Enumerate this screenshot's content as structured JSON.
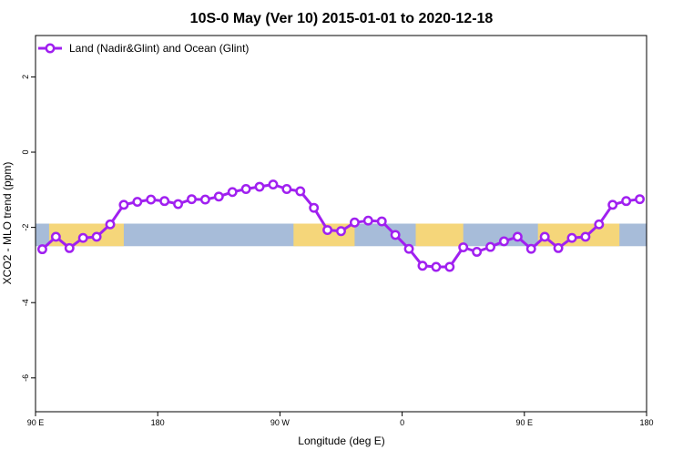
{
  "colors": {
    "series": "#a020f0",
    "ocean_band": "#a7bcd9",
    "land_band": "#f5d67a",
    "axis": "#000000"
  },
  "chart_data": {
    "type": "line",
    "title": "10S-0 May (Ver 10)   2015-01-01 to 2020-12-18",
    "xlabel": "Longitude (deg E)",
    "ylabel": "XCO2 - MLO trend (ppm)",
    "xlim": [
      0,
      450
    ],
    "ylim": [
      -6.9,
      3.1
    ],
    "x_ticks": [
      {
        "value": 0,
        "label": "90 E"
      },
      {
        "value": 90,
        "label": "180"
      },
      {
        "value": 180,
        "label": "90 W"
      },
      {
        "value": 270,
        "label": "0"
      },
      {
        "value": 360,
        "label": "90 E"
      },
      {
        "value": 450,
        "label": "180"
      }
    ],
    "y_ticks": [
      {
        "value": 2,
        "label": "2"
      },
      {
        "value": 0,
        "label": "0"
      },
      {
        "value": -2,
        "label": "-2"
      },
      {
        "value": -4,
        "label": "-4"
      },
      {
        "value": -6,
        "label": "-6"
      }
    ],
    "latitude_band": {
      "y_top": -1.9,
      "y_bottom": -2.5
    },
    "land_segments": [
      [
        10,
        65
      ],
      [
        190,
        235
      ],
      [
        280,
        315
      ],
      [
        370,
        430
      ]
    ],
    "legend_position": "top-left",
    "series": [
      {
        "name": "Land (Nadir&Glint) and Ocean (Glint)",
        "x": [
          5,
          15,
          25,
          35,
          45,
          55,
          65,
          75,
          85,
          95,
          105,
          115,
          125,
          135,
          145,
          155,
          165,
          175,
          185,
          195,
          205,
          215,
          225,
          235,
          245,
          255,
          265,
          275,
          285,
          295,
          305,
          315,
          325,
          335,
          345,
          355,
          365,
          375,
          385,
          395,
          405,
          415,
          425,
          435,
          445
        ],
        "values": [
          -2.58,
          -2.25,
          -2.55,
          -2.28,
          -2.25,
          -1.92,
          -1.4,
          -1.32,
          -1.26,
          -1.3,
          -1.38,
          -1.25,
          -1.26,
          -1.18,
          -1.06,
          -0.98,
          -0.92,
          -0.86,
          -0.98,
          -1.04,
          -1.48,
          -2.07,
          -2.1,
          -1.87,
          -1.82,
          -1.84,
          -2.2,
          -2.57,
          -3.02,
          -3.05,
          -3.05,
          -2.53,
          -2.65,
          -2.52,
          -2.37,
          -2.25,
          -2.57,
          -2.25,
          -2.55,
          -2.28,
          -2.25,
          -1.92,
          -1.4,
          -1.3,
          -1.25
        ]
      }
    ]
  }
}
